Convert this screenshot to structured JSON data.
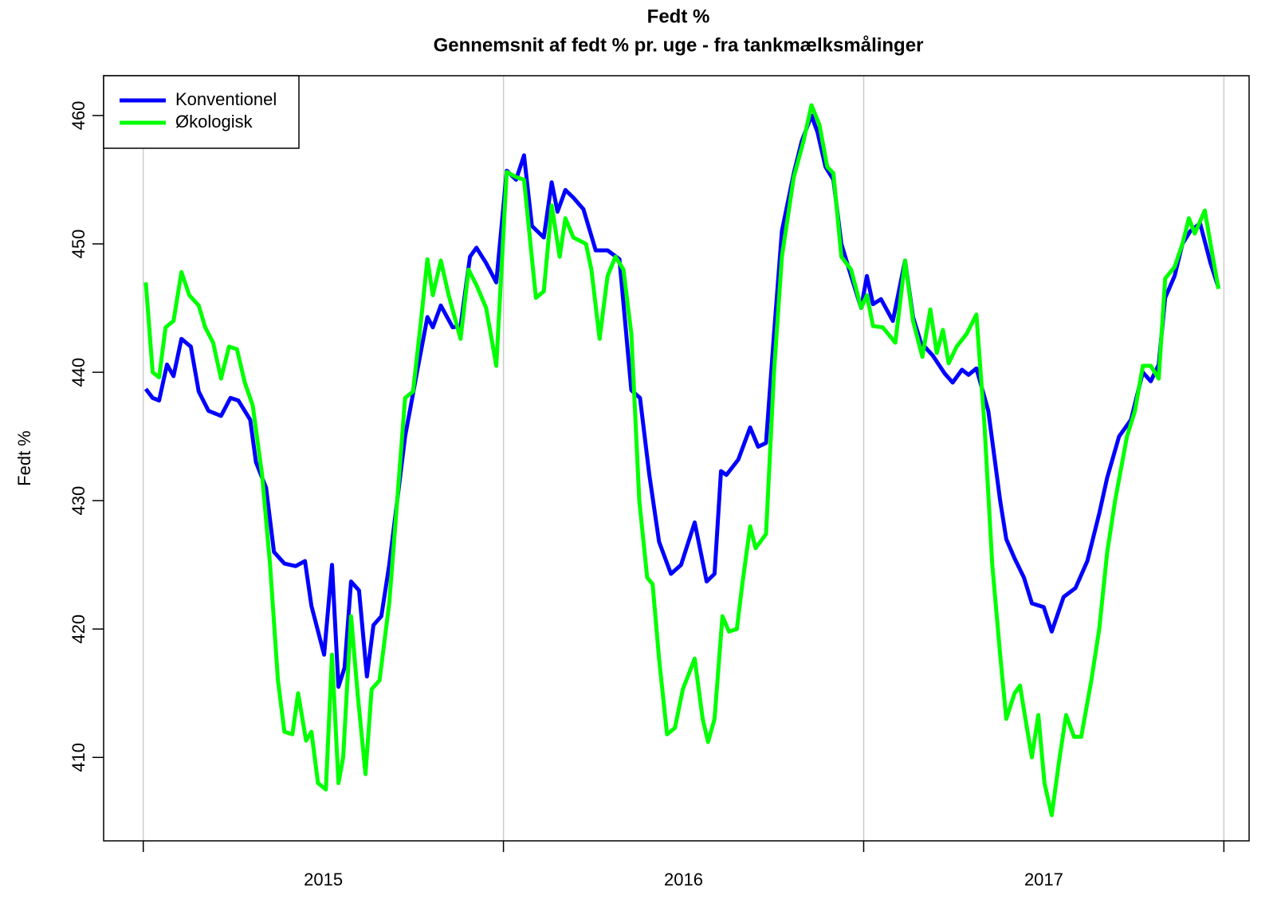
{
  "chart_data": {
    "type": "line",
    "title": "Fedt %",
    "subtitle": "Gennemsnit af fedt % pr. uge - fra tankmælksmålinger",
    "y_label": "Fedt %",
    "xlim": [
      2014.89,
      2018.07
    ],
    "xticks": [
      2015,
      2016,
      2017,
      2018
    ],
    "xtick_labels": [
      {
        "value": 2015.5,
        "label": "2015"
      },
      {
        "value": 2016.5,
        "label": "2016"
      },
      {
        "value": 2017.5,
        "label": "2017"
      }
    ],
    "ylim": [
      403.5,
      463.1
    ],
    "yticks": [
      410,
      420,
      430,
      440,
      450,
      460
    ],
    "grid": "x",
    "legend": "topleft",
    "series": [
      {
        "name": "Konventionel",
        "color": "#0000ff",
        "x": [
          2015.007,
          2015.026,
          2015.044,
          2015.066,
          2015.084,
          2015.106,
          2015.132,
          2015.154,
          2015.181,
          2015.216,
          2015.242,
          2015.264,
          2015.297,
          2015.313,
          2015.341,
          2015.363,
          2015.392,
          2015.423,
          2015.449,
          2015.467,
          2015.502,
          2015.524,
          2015.542,
          2015.559,
          2015.577,
          2015.599,
          2015.621,
          2015.639,
          2015.661,
          2015.683,
          2015.705,
          2015.727,
          2015.76,
          2015.789,
          2015.804,
          2015.826,
          2015.859,
          2015.881,
          2015.907,
          2015.925,
          2015.952,
          2015.98,
          2016.009,
          2016.035,
          2016.057,
          2016.079,
          2016.112,
          2016.134,
          2016.15,
          2016.172,
          2016.194,
          2016.222,
          2016.256,
          2016.289,
          2016.322,
          2016.355,
          2016.379,
          2016.405,
          2016.432,
          2016.465,
          2016.493,
          2016.531,
          2016.564,
          2016.586,
          2016.604,
          2016.619,
          2016.652,
          2016.685,
          2016.707,
          2016.729,
          2016.751,
          2016.773,
          2016.806,
          2016.828,
          2016.855,
          2016.872,
          2016.894,
          2016.916,
          2016.938,
          2016.965,
          2016.993,
          2017.009,
          2017.026,
          2017.048,
          2017.081,
          2017.115,
          2017.137,
          2017.159,
          2017.192,
          2017.225,
          2017.247,
          2017.273,
          2017.291,
          2017.313,
          2017.346,
          2017.379,
          2017.396,
          2017.419,
          2017.445,
          2017.467,
          2017.5,
          2017.522,
          2017.555,
          2017.588,
          2017.621,
          2017.654,
          2017.676,
          2017.709,
          2017.742,
          2017.775,
          2017.797,
          2017.819,
          2017.837,
          2017.863,
          2017.885,
          2017.907,
          2017.934,
          2017.963,
          2017.985
        ],
        "values": [
          438.7,
          438,
          437.8,
          440.6,
          439.7,
          442.6,
          442,
          438.5,
          437,
          436.6,
          438,
          437.8,
          436.3,
          433,
          431,
          426,
          425.1,
          424.9,
          425.3,
          421.8,
          418,
          425,
          415.5,
          417,
          423.7,
          423,
          416.3,
          420.3,
          421,
          425,
          430,
          435,
          440,
          444.3,
          443.5,
          445.2,
          443.5,
          443.6,
          449,
          449.7,
          448.5,
          447,
          455.7,
          455,
          456.9,
          451.4,
          450.5,
          454.8,
          452.5,
          454.2,
          453.6,
          452.7,
          449.5,
          449.5,
          448.8,
          438.6,
          438,
          432,
          426.8,
          424.3,
          425,
          428.3,
          423.7,
          424.3,
          432.3,
          432,
          433.2,
          435.7,
          434.2,
          434.5,
          443,
          451,
          455.5,
          458,
          460,
          458.7,
          456,
          455,
          450,
          447.5,
          445,
          447.5,
          445.3,
          445.7,
          444,
          448.7,
          444.3,
          442.3,
          441.3,
          439.9,
          439.2,
          440.2,
          439.8,
          440.3,
          437,
          430,
          427,
          425.5,
          424,
          422,
          421.7,
          419.8,
          422.5,
          423.2,
          425.3,
          429,
          431.8,
          435,
          436.3,
          440,
          439.3,
          440.6,
          445.8,
          447.5,
          450,
          451,
          451.6,
          448.5,
          446.6
        ]
      },
      {
        "name": "Økologisk",
        "color": "#00ff00",
        "x": [
          2015.007,
          2015.026,
          2015.044,
          2015.062,
          2015.084,
          2015.106,
          2015.128,
          2015.154,
          2015.172,
          2015.194,
          2015.216,
          2015.238,
          2015.26,
          2015.282,
          2015.304,
          2015.33,
          2015.352,
          2015.374,
          2015.392,
          2015.414,
          2015.43,
          2015.452,
          2015.467,
          2015.485,
          2015.507,
          2015.524,
          2015.542,
          2015.555,
          2015.577,
          2015.595,
          2015.617,
          2015.634,
          2015.656,
          2015.683,
          2015.705,
          2015.727,
          2015.749,
          2015.771,
          2015.789,
          2015.804,
          2015.826,
          2015.848,
          2015.881,
          2015.903,
          2015.925,
          2015.952,
          2015.98,
          2016.009,
          2016.035,
          2016.057,
          2016.09,
          2016.112,
          2016.134,
          2016.156,
          2016.172,
          2016.194,
          2016.229,
          2016.244,
          2016.267,
          2016.289,
          2016.311,
          2016.333,
          2016.355,
          2016.377,
          2016.399,
          2016.414,
          2016.432,
          2016.454,
          2016.476,
          2016.498,
          2016.531,
          2016.553,
          2016.568,
          2016.586,
          2016.608,
          2016.626,
          2016.648,
          2016.663,
          2016.685,
          2016.7,
          2016.729,
          2016.751,
          2016.773,
          2016.806,
          2016.833,
          2016.855,
          2016.877,
          2016.899,
          2016.916,
          2016.938,
          2016.965,
          2016.993,
          2017.009,
          2017.026,
          2017.053,
          2017.088,
          2017.115,
          2017.137,
          2017.163,
          2017.185,
          2017.203,
          2017.22,
          2017.236,
          2017.258,
          2017.286,
          2017.313,
          2017.335,
          2017.357,
          2017.379,
          2017.396,
          2017.419,
          2017.434,
          2017.449,
          2017.467,
          2017.485,
          2017.502,
          2017.522,
          2017.544,
          2017.562,
          2017.584,
          2017.604,
          2017.632,
          2017.654,
          2017.676,
          2017.698,
          2017.731,
          2017.753,
          2017.775,
          2017.797,
          2017.819,
          2017.837,
          2017.863,
          2017.885,
          2017.903,
          2017.919,
          2017.947,
          2017.969,
          2017.985
        ],
        "values": [
          447,
          440,
          439.6,
          443.5,
          444,
          447.8,
          446,
          445.2,
          443.5,
          442.3,
          439.5,
          442,
          441.8,
          439.2,
          437.4,
          432,
          425,
          416,
          412,
          411.8,
          415,
          411.3,
          412,
          408,
          407.5,
          418,
          408,
          410,
          421,
          415,
          408.7,
          415.3,
          416,
          422,
          430,
          438,
          438.5,
          444,
          448.8,
          446,
          448.7,
          446,
          442.6,
          448,
          446.8,
          445,
          440.5,
          455.6,
          455.2,
          455,
          445.8,
          446.3,
          453,
          449,
          452,
          450.5,
          450,
          448,
          442.6,
          447.5,
          449,
          448,
          443,
          430,
          424,
          423.5,
          417.7,
          411.8,
          412.3,
          415.3,
          417.7,
          413,
          411.2,
          413,
          421,
          419.8,
          420,
          423.5,
          428,
          426.3,
          427.4,
          440,
          449,
          455.2,
          458,
          460.8,
          459.3,
          456,
          455.5,
          449,
          448,
          445,
          446,
          443.6,
          443.5,
          442.3,
          448.7,
          444,
          441.2,
          444.9,
          441.5,
          443.3,
          440.7,
          442,
          443,
          444.5,
          436,
          425,
          418,
          413,
          415,
          415.6,
          413,
          410,
          413.3,
          408,
          405.5,
          410,
          413.3,
          411.6,
          411.6,
          416,
          420,
          426,
          430,
          435,
          437,
          440.5,
          440.5,
          439.5,
          447.3,
          448.2,
          450,
          452,
          450.8,
          452.6,
          449,
          446.5
        ]
      }
    ]
  }
}
